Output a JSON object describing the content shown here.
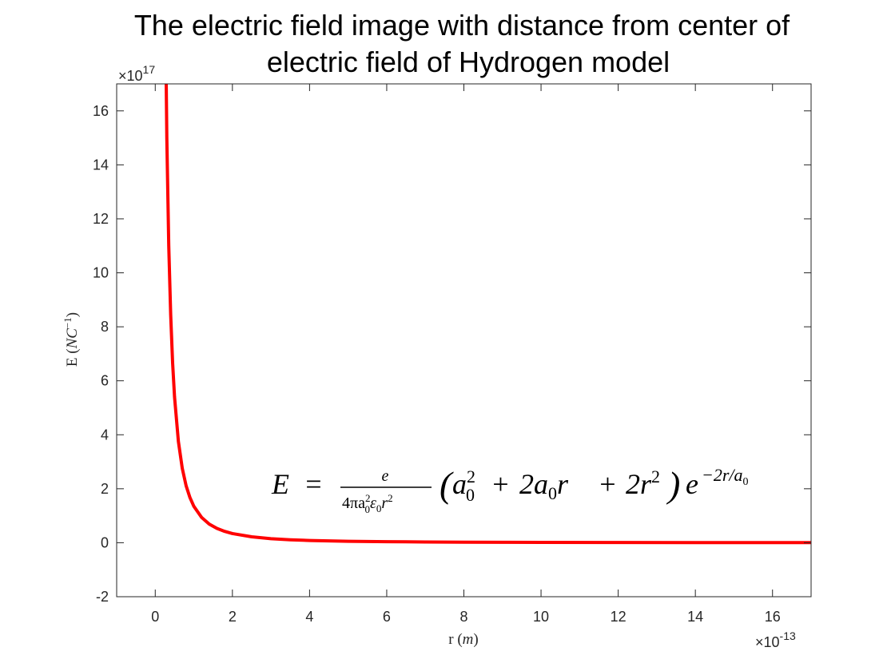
{
  "chart_data": {
    "type": "line",
    "title_lines": [
      "The electric field image with distance from center of",
      "electric field of Hydrogen model"
    ],
    "xlabel": {
      "prefix": "r (",
      "var": "m",
      "suffix": ")"
    },
    "ylabel": {
      "prefix": "E (",
      "var": "NC",
      "sup": "−1",
      "suffix": ")"
    },
    "x_exponent_label": "×10",
    "x_exponent": "-13",
    "y_exponent_label": "×10",
    "y_exponent": "17",
    "xlim": [
      -1,
      17
    ],
    "ylim": [
      -2,
      17
    ],
    "x_tick_values": [
      0,
      2,
      4,
      6,
      8,
      10,
      12,
      14,
      16
    ],
    "x_tick_labels": [
      "0",
      "2",
      "4",
      "6",
      "8",
      "10",
      "12",
      "14",
      "16"
    ],
    "y_tick_values": [
      -2,
      0,
      2,
      4,
      6,
      8,
      10,
      12,
      14,
      16
    ],
    "y_tick_labels": [
      "-2",
      "0",
      "2",
      "4",
      "6",
      "8",
      "10",
      "12",
      "14",
      "16"
    ],
    "grid": false,
    "box": true,
    "series": [
      {
        "color": "#ff0000",
        "x": [
          0.25,
          0.3,
          0.35,
          0.4,
          0.45,
          0.5,
          0.6,
          0.7,
          0.8,
          0.9,
          1.0,
          1.2,
          1.4,
          1.6,
          1.8,
          2.0,
          2.5,
          3.0,
          3.5,
          4.0,
          5.0,
          6.0,
          7.0,
          8.0,
          9.0,
          10.0,
          12.0,
          14.0,
          16.0,
          17.0
        ],
        "y": [
          21.6,
          15.0,
          11.0,
          8.45,
          6.67,
          5.4,
          3.75,
          2.76,
          2.11,
          1.67,
          1.35,
          0.94,
          0.69,
          0.53,
          0.42,
          0.34,
          0.22,
          0.15,
          0.11,
          0.084,
          0.054,
          0.038,
          0.028,
          0.021,
          0.017,
          0.0135,
          0.0094,
          0.0069,
          0.0053,
          0.0047
        ]
      }
    ],
    "annotation": {
      "lhs": "E",
      "eq": "=",
      "num": "e",
      "den": {
        "a": "4πa",
        "a_sup": "2",
        "a_sub": "0",
        "b": "ε",
        "b_sub": "0",
        "c": "r",
        "c_sup": "2"
      },
      "paren_open": "(",
      "t1": "a",
      "t1_sup": "2",
      "t1_sub": "0",
      "plus1": "+",
      "t2": "2a",
      "t2_sub": "0",
      "t2_tail": "r",
      "plus2": "+",
      "t3": "2r",
      "t3_sup": "2",
      "paren_close": ")",
      "exp_base": "e",
      "exp_power": "−2r/a",
      "exp_power_sub": "0"
    }
  }
}
